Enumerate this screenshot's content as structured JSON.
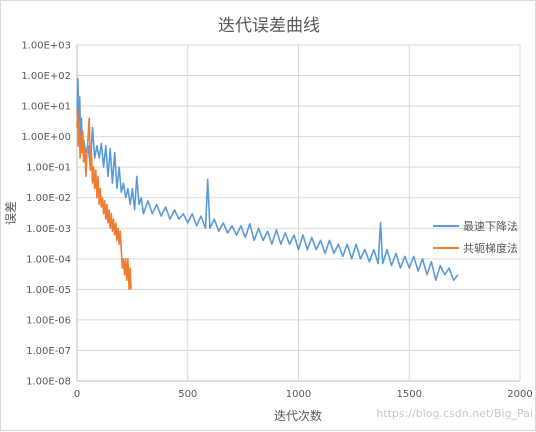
{
  "chart_data": {
    "type": "line",
    "title": "迭代误差曲线",
    "xlabel": "迭代次数",
    "ylabel": "误差",
    "y_scale": "log",
    "xlim": [
      0,
      2000
    ],
    "ylim": [
      1e-08,
      1000
    ],
    "grid": true,
    "legend_position": "right",
    "x_ticks": [
      "0",
      "500",
      "1000",
      "1500",
      "2000"
    ],
    "y_ticks": [
      "1.00E-08",
      "1.00E-07",
      "1.00E-06",
      "1.00E-05",
      "1.00E-04",
      "1.00E-03",
      "1.00E-02",
      "1.00E-01",
      "1.00E+00",
      "1.00E+01",
      "1.00E+02",
      "1.00E+03"
    ],
    "series": [
      {
        "name": "最速下降法",
        "color": "#5b9bd5",
        "points": [
          [
            0,
            5
          ],
          [
            4,
            80
          ],
          [
            8,
            3
          ],
          [
            12,
            20
          ],
          [
            16,
            1
          ],
          [
            20,
            4
          ],
          [
            25,
            0.6
          ],
          [
            30,
            0.8
          ],
          [
            40,
            0.3
          ],
          [
            50,
            0.5
          ],
          [
            60,
            0.1
          ],
          [
            70,
            2
          ],
          [
            80,
            0.2
          ],
          [
            90,
            0.5
          ],
          [
            100,
            0.2
          ],
          [
            110,
            0.6
          ],
          [
            120,
            0.1
          ],
          [
            130,
            0.5
          ],
          [
            140,
            0.05
          ],
          [
            150,
            0.4
          ],
          [
            160,
            0.03
          ],
          [
            170,
            0.3
          ],
          [
            180,
            0.02
          ],
          [
            190,
            0.1
          ],
          [
            200,
            0.015
          ],
          [
            210,
            0.03
          ],
          [
            220,
            0.01
          ],
          [
            230,
            0.02
          ],
          [
            240,
            0.006
          ],
          [
            250,
            0.02
          ],
          [
            260,
            0.004
          ],
          [
            270,
            0.05
          ],
          [
            280,
            0.006
          ],
          [
            290,
            0.01
          ],
          [
            300,
            0.003
          ],
          [
            320,
            0.008
          ],
          [
            340,
            0.003
          ],
          [
            360,
            0.006
          ],
          [
            380,
            0.0025
          ],
          [
            400,
            0.005
          ],
          [
            420,
            0.002
          ],
          [
            440,
            0.004
          ],
          [
            460,
            0.002
          ],
          [
            480,
            0.003
          ],
          [
            500,
            0.0015
          ],
          [
            520,
            0.003
          ],
          [
            540,
            0.0012
          ],
          [
            560,
            0.0025
          ],
          [
            580,
            0.001
          ],
          [
            590,
            0.04
          ],
          [
            600,
            0.001
          ],
          [
            620,
            0.002
          ],
          [
            640,
            0.0008
          ],
          [
            660,
            0.0015
          ],
          [
            680,
            0.0007
          ],
          [
            700,
            0.0012
          ],
          [
            720,
            0.0006
          ],
          [
            740,
            0.0012
          ],
          [
            760,
            0.0005
          ],
          [
            780,
            0.0014
          ],
          [
            800,
            0.0004
          ],
          [
            820,
            0.001
          ],
          [
            840,
            0.0004
          ],
          [
            860,
            0.0008
          ],
          [
            880,
            0.0003
          ],
          [
            900,
            0.0009
          ],
          [
            920,
            0.0003
          ],
          [
            940,
            0.0007
          ],
          [
            960,
            0.0003
          ],
          [
            980,
            0.0006
          ],
          [
            1000,
            0.0002
          ],
          [
            1020,
            0.0006
          ],
          [
            1040,
            0.0002
          ],
          [
            1060,
            0.0005
          ],
          [
            1080,
            0.0002
          ],
          [
            1100,
            0.0004
          ],
          [
            1120,
            0.00015
          ],
          [
            1140,
            0.0004
          ],
          [
            1160,
            0.00015
          ],
          [
            1180,
            0.0003
          ],
          [
            1200,
            0.00012
          ],
          [
            1220,
            0.0003
          ],
          [
            1240,
            0.0001
          ],
          [
            1260,
            0.0003
          ],
          [
            1280,
            0.0001
          ],
          [
            1300,
            0.0002
          ],
          [
            1320,
            8e-05
          ],
          [
            1340,
            0.0002
          ],
          [
            1360,
            7e-05
          ],
          [
            1370,
            0.0015
          ],
          [
            1380,
            7e-05
          ],
          [
            1400,
            0.0002
          ],
          [
            1420,
            6e-05
          ],
          [
            1440,
            0.00015
          ],
          [
            1460,
            5e-05
          ],
          [
            1480,
            0.00012
          ],
          [
            1500,
            5e-05
          ],
          [
            1520,
            0.00012
          ],
          [
            1540,
            4e-05
          ],
          [
            1560,
            0.0001
          ],
          [
            1580,
            3e-05
          ],
          [
            1600,
            8e-05
          ],
          [
            1620,
            2e-05
          ],
          [
            1640,
            6e-05
          ],
          [
            1660,
            3e-05
          ],
          [
            1680,
            5e-05
          ],
          [
            1700,
            2e-05
          ],
          [
            1720,
            3e-05
          ]
        ]
      },
      {
        "name": "共轭梯度法",
        "color": "#ed7d31",
        "points": [
          [
            0,
            2
          ],
          [
            3,
            8
          ],
          [
            6,
            0.5
          ],
          [
            10,
            3
          ],
          [
            14,
            0.2
          ],
          [
            18,
            1
          ],
          [
            22,
            0.3
          ],
          [
            26,
            1.5
          ],
          [
            30,
            0.15
          ],
          [
            35,
            0.4
          ],
          [
            40,
            0.05
          ],
          [
            45,
            0.3
          ],
          [
            50,
            1
          ],
          [
            55,
            4
          ],
          [
            60,
            0.08
          ],
          [
            65,
            0.3
          ],
          [
            70,
            0.03
          ],
          [
            75,
            0.1
          ],
          [
            80,
            0.02
          ],
          [
            85,
            0.08
          ],
          [
            90,
            0.01
          ],
          [
            95,
            0.05
          ],
          [
            100,
            0.006
          ],
          [
            105,
            0.02
          ],
          [
            110,
            0.005
          ],
          [
            115,
            0.01
          ],
          [
            120,
            0.003
          ],
          [
            125,
            0.008
          ],
          [
            130,
            0.002
          ],
          [
            135,
            0.006
          ],
          [
            140,
            0.0015
          ],
          [
            145,
            0.004
          ],
          [
            150,
            0.001
          ],
          [
            155,
            0.003
          ],
          [
            160,
            0.0008
          ],
          [
            165,
            0.002
          ],
          [
            170,
            0.0006
          ],
          [
            175,
            0.0015
          ],
          [
            180,
            0.0004
          ],
          [
            185,
            0.001
          ],
          [
            190,
            0.0003
          ],
          [
            195,
            0.0008
          ],
          [
            200,
            0.0002
          ],
          [
            205,
            5e-05
          ],
          [
            210,
            0.0001
          ],
          [
            215,
            3e-05
          ],
          [
            220,
            0.0001
          ],
          [
            225,
            2e-05
          ],
          [
            230,
            0.0001
          ],
          [
            235,
            1e-05
          ],
          [
            240,
            5e-05
          ],
          [
            244,
            1e-05
          ]
        ]
      }
    ]
  },
  "watermark": "https://blog.csdn.net/Big_Pai"
}
